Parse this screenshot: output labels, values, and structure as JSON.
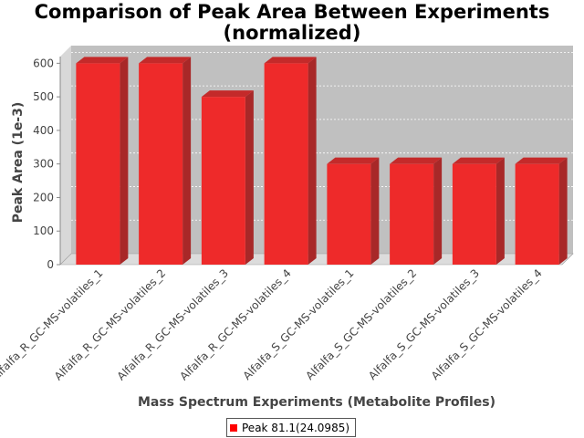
{
  "chart_data": {
    "type": "bar",
    "title_lines": [
      "Comparison of Peak Area Between Experiments",
      "(normalized)"
    ],
    "xlabel": "Mass Spectrum Experiments (Metabolite Profiles)",
    "ylabel": "Peak Area (1e-3)",
    "categories": [
      "Alfalfa_R_GC-MS-volatiles_1",
      "Alfalfa_R_GC-MS-volatiles_2",
      "Alfalfa_R_GC-MS-volatiles_3",
      "Alfalfa_R_GC-MS-volatiles_4",
      "Alfalfa_S_GC-MS-volatiles_1",
      "Alfalfa_S_GC-MS-volatiles_2",
      "Alfalfa_S_GC-MS-volatiles_3",
      "Alfalfa_S_GC-MS-volatiles_4"
    ],
    "series": [
      {
        "name": "Peak 81.1(24.0985)",
        "values": [
          600,
          600,
          500,
          600,
          300,
          300,
          300,
          300
        ],
        "color": "#ff0000"
      }
    ],
    "ylim": [
      0,
      620
    ],
    "yticks": [
      0,
      100,
      200,
      300,
      400,
      500,
      600
    ],
    "grid": true,
    "legend_position": "bottom"
  }
}
